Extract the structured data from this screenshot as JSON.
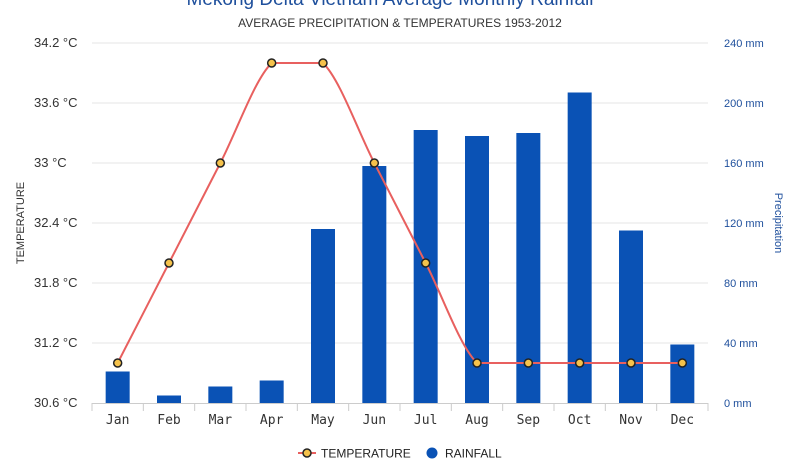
{
  "chart_data": {
    "type": "bar+line",
    "title": "Mekong Delta Vietnam Average Monthly Rainfall",
    "subtitle": "AVERAGE PRECIPITATION & TEMPERATURES 1953-2012",
    "categories": [
      "Jan",
      "Feb",
      "Mar",
      "Apr",
      "May",
      "Jun",
      "Jul",
      "Aug",
      "Sep",
      "Oct",
      "Nov",
      "Dec"
    ],
    "series": [
      {
        "name": "TEMPERATURE",
        "type": "line",
        "axis": "left",
        "values": [
          31.0,
          32.0,
          33.0,
          34.0,
          34.0,
          33.0,
          32.0,
          31.0,
          31.0,
          31.0,
          31.0,
          31.0
        ]
      },
      {
        "name": "RAINFALL",
        "type": "bar",
        "axis": "right",
        "values": [
          21,
          5,
          11,
          15,
          116,
          158,
          182,
          178,
          180,
          207,
          115,
          39
        ]
      }
    ],
    "ylabel_left": "TEMPERATURE",
    "ylabel_right": "Precipitation",
    "ylim_left": [
      30.6,
      34.2
    ],
    "ylim_right": [
      0,
      240
    ],
    "yticks_left": [
      "30.6 °C",
      "31.2 °C",
      "31.8 °C",
      "32.4 °C",
      "33 °C",
      "33.6 °C",
      "34.2 °C"
    ],
    "yticks_right": [
      "0 mm",
      "40 mm",
      "80 mm",
      "120 mm",
      "160 mm",
      "200 mm",
      "240 mm"
    ],
    "grid": true,
    "legend_position": "bottom-center",
    "colors": {
      "bar": "#0a52b5",
      "line": "#e8605f",
      "marker_fill": "#f5c24b",
      "marker_stroke": "#222222",
      "title": "#1e4f9c",
      "grid": "#e6e6e6"
    }
  }
}
